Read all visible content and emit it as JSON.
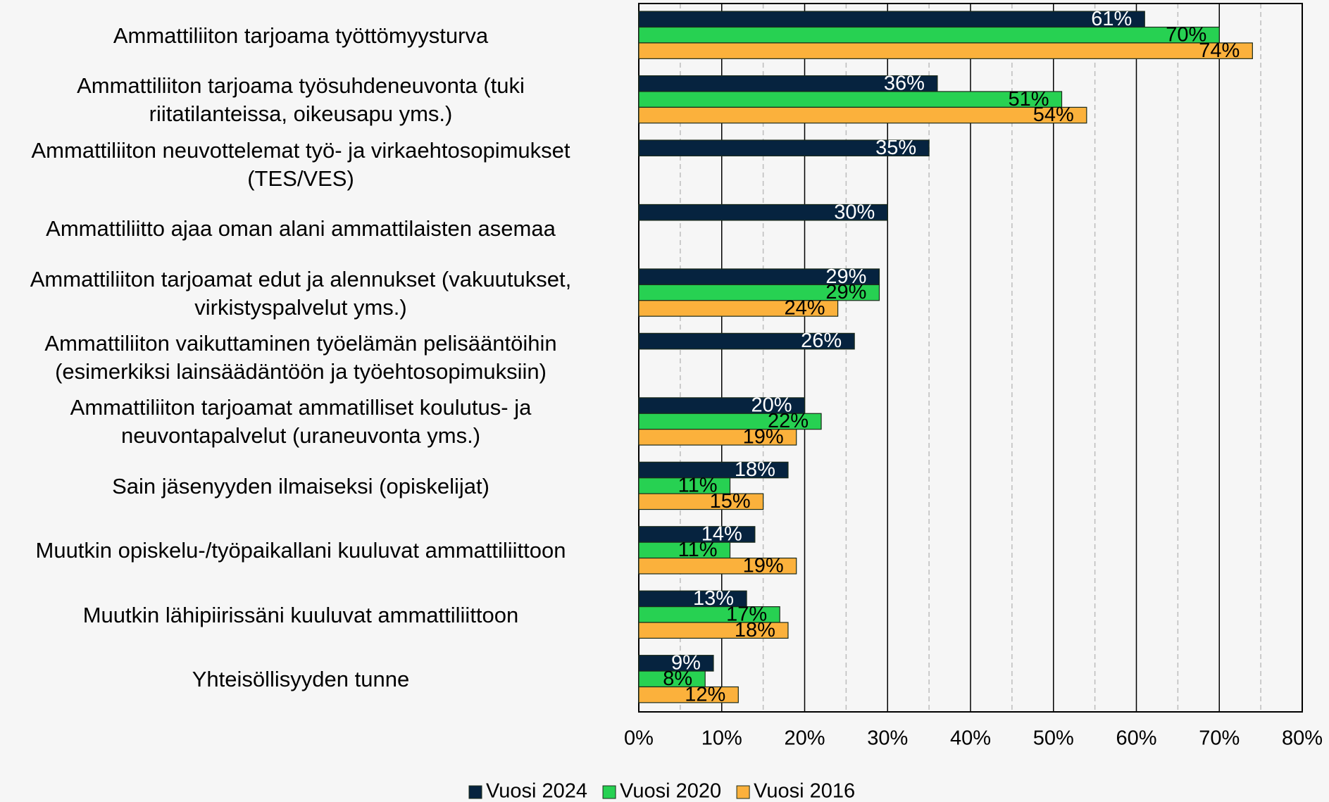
{
  "chart_data": {
    "type": "bar",
    "orientation": "horizontal",
    "categories": [
      "Ammattiliiton tarjoama työttömyysturva",
      "Ammattiliiton tarjoama työsuhdeneuvonta (tuki\nriitatilanteissa, oikeusapu yms.)",
      "Ammattiliiton neuvottelemat työ- ja virkaehtosopimukset\n(TES/VES)",
      "Ammattiliitto ajaa oman alani ammattilaisten asemaa",
      "Ammattiliiton tarjoamat edut ja alennukset (vakuutukset,\nvirkistyspalvelut yms.)",
      "Ammattiliiton vaikuttaminen työelämän pelisääntöihin\n(esimerkiksi lainsäädäntöön ja työehtosopimuksiin)",
      "Ammattiliiton tarjoamat ammatilliset koulutus- ja\nneuvontapalvelut (uraneuvonta yms.)",
      "Sain jäsenyyden ilmaiseksi (opiskelijat)",
      "Muutkin opiskelu-/työpaikallani kuuluvat ammattiliittoon",
      "Muutkin lähipiirissäni kuuluvat ammattiliittoon",
      "Yhteisöllisyyden tunne"
    ],
    "series": [
      {
        "name": "Vuosi 2024",
        "color": "#06233f",
        "label_color": "#ffffff",
        "values": [
          61,
          36,
          35,
          30,
          29,
          26,
          20,
          18,
          14,
          13,
          9
        ],
        "value_labels": [
          "61%",
          "36%",
          "35%",
          "30%",
          "29%",
          "26%",
          "20%",
          "18%",
          "14%",
          "13%",
          "9%"
        ]
      },
      {
        "name": "Vuosi 2020",
        "color": "#27d152",
        "label_color": "#000000",
        "values": [
          70,
          51,
          null,
          null,
          29,
          null,
          22,
          11,
          11,
          17,
          8
        ],
        "value_labels": [
          "70%",
          "51%",
          null,
          null,
          "29%",
          null,
          "22%",
          "11%",
          "11%",
          "17%",
          "8%"
        ]
      },
      {
        "name": "Vuosi 2016",
        "color": "#fbb13c",
        "label_color": "#000000",
        "values": [
          74,
          54,
          null,
          null,
          24,
          null,
          19,
          15,
          19,
          18,
          12
        ],
        "value_labels": [
          "74%",
          "54%",
          null,
          null,
          "24%",
          null,
          "19%",
          "15%",
          "19%",
          "18%",
          "12%"
        ]
      }
    ],
    "xlim": [
      0,
      80
    ],
    "xticks": [
      {
        "value": 0,
        "label": "0%"
      },
      {
        "value": 10,
        "label": "10%"
      },
      {
        "value": 20,
        "label": "20%"
      },
      {
        "value": 30,
        "label": "30%"
      },
      {
        "value": 40,
        "label": "40%"
      },
      {
        "value": 50,
        "label": "50%"
      },
      {
        "value": 60,
        "label": "60%"
      },
      {
        "value": 70,
        "label": "70%"
      },
      {
        "value": 80,
        "label": "80%"
      }
    ],
    "minor_xticks": [
      5,
      15,
      25,
      35,
      45,
      55,
      65,
      75
    ],
    "grid": true,
    "legend": "bottom"
  }
}
